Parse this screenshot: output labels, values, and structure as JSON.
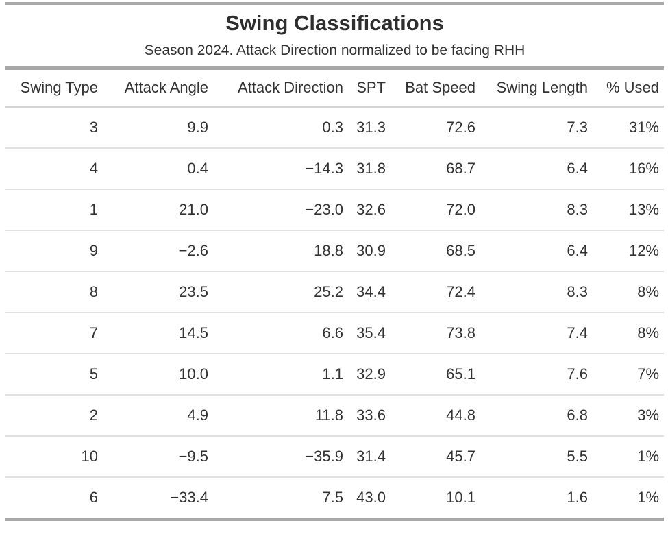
{
  "title": "Swing Classifications",
  "subtitle": "Season 2024. Attack Direction normalized to be facing RHH",
  "colors": {
    "text": "#333333",
    "thick_border": "#a8a8a8",
    "header_underline": "#d3d3d3",
    "row_separator": "#e0e0e0",
    "background": "#ffffff"
  },
  "chart_data": {
    "type": "table",
    "title": "Swing Classifications",
    "subtitle": "Season 2024. Attack Direction normalized to be facing RHH",
    "columns": [
      "Swing Type",
      "Attack Angle",
      "Attack Direction",
      "SPT",
      "Bat Speed",
      "Swing Length",
      "% Used"
    ],
    "rows": [
      [
        "3",
        "9.9",
        "0.3",
        "31.3",
        "72.6",
        "7.3",
        "31%"
      ],
      [
        "4",
        "0.4",
        "−14.3",
        "31.8",
        "68.7",
        "6.4",
        "16%"
      ],
      [
        "1",
        "21.0",
        "−23.0",
        "32.6",
        "72.0",
        "8.3",
        "13%"
      ],
      [
        "9",
        "−2.6",
        "18.8",
        "30.9",
        "68.5",
        "6.4",
        "12%"
      ],
      [
        "8",
        "23.5",
        "25.2",
        "34.4",
        "72.4",
        "8.3",
        "8%"
      ],
      [
        "7",
        "14.5",
        "6.6",
        "35.4",
        "73.8",
        "7.4",
        "8%"
      ],
      [
        "5",
        "10.0",
        "1.1",
        "32.9",
        "65.1",
        "7.6",
        "7%"
      ],
      [
        "2",
        "4.9",
        "11.8",
        "33.6",
        "44.8",
        "6.8",
        "3%"
      ],
      [
        "10",
        "−9.5",
        "−35.9",
        "31.4",
        "45.7",
        "5.5",
        "1%"
      ],
      [
        "6",
        "−33.4",
        "7.5",
        "43.0",
        "10.1",
        "1.6",
        "1%"
      ]
    ],
    "layout_hints": {
      "numeric_alignment": "right",
      "grid": "horizontal-rules-only",
      "sorted_by": "% Used descending"
    }
  }
}
